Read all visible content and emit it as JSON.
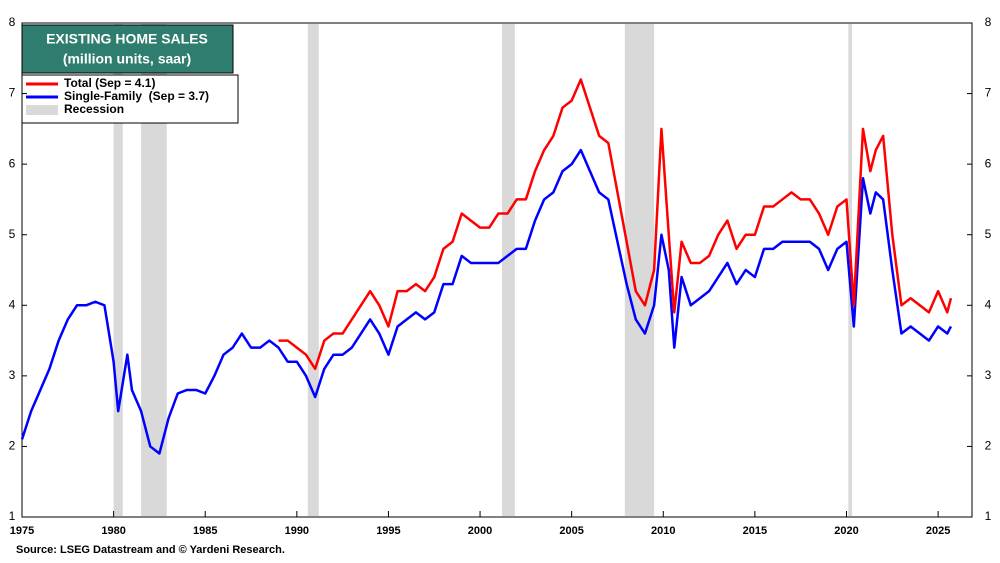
{
  "chart_data": {
    "type": "line",
    "title": "EXISTING HOME SALES",
    "subtitle": "(million units, saar)",
    "source": "Source: LSEG Datastream and © Yardeni Research.",
    "recession_label": "Recession",
    "recession_color": "#d9d9d9",
    "recessions": [
      [
        1980.0,
        1980.5
      ],
      [
        1981.5,
        1982.9
      ],
      [
        1990.6,
        1991.2
      ],
      [
        2001.2,
        2001.9
      ],
      [
        2007.9,
        2009.5
      ],
      [
        2020.1,
        2020.3
      ]
    ],
    "x": [
      1975,
      1975.5,
      1976,
      1976.5,
      1977,
      1977.5,
      1978,
      1978.5,
      1979,
      1979.5,
      1980,
      1980.25,
      1980.75,
      1981,
      1981.5,
      1982,
      1982.5,
      1983,
      1983.5,
      1984,
      1984.5,
      1985,
      1985.5,
      1986,
      1986.5,
      1987,
      1987.5,
      1988,
      1988.5,
      1989,
      1989.5,
      1990,
      1990.5,
      1991,
      1991.5,
      1992,
      1992.5,
      1993,
      1993.5,
      1994,
      1994.5,
      1995,
      1995.5,
      1996,
      1996.5,
      1997,
      1997.5,
      1998,
      1998.5,
      1999,
      1999.5,
      2000,
      2000.5,
      2001,
      2001.5,
      2002,
      2002.5,
      2003,
      2003.5,
      2004,
      2004.5,
      2005,
      2005.5,
      2006,
      2006.5,
      2007,
      2007.5,
      2008,
      2008.5,
      2009,
      2009.5,
      2009.9,
      2010.3,
      2010.6,
      2011,
      2011.5,
      2012,
      2012.5,
      2013,
      2013.5,
      2014,
      2014.5,
      2015,
      2015.5,
      2016,
      2016.5,
      2017,
      2017.5,
      2018,
      2018.5,
      2019,
      2019.5,
      2020,
      2020.4,
      2020.9,
      2021.3,
      2021.6,
      2022,
      2022.5,
      2023,
      2023.5,
      2024,
      2024.5,
      2025,
      2025.5,
      2025.7
    ],
    "series": [
      {
        "name": "Total (Sep = 4.1)",
        "color": "#ff0000",
        "values": [
          null,
          null,
          null,
          null,
          null,
          null,
          null,
          null,
          null,
          null,
          null,
          null,
          null,
          null,
          null,
          null,
          null,
          null,
          null,
          null,
          null,
          null,
          null,
          null,
          null,
          null,
          null,
          null,
          null,
          3.5,
          3.5,
          3.4,
          3.3,
          3.1,
          3.5,
          3.6,
          3.6,
          3.8,
          4.0,
          4.2,
          4.0,
          3.7,
          4.2,
          4.2,
          4.3,
          4.2,
          4.4,
          4.8,
          4.9,
          5.3,
          5.2,
          5.1,
          5.1,
          5.3,
          5.3,
          5.5,
          5.5,
          5.9,
          6.2,
          6.4,
          6.8,
          6.9,
          7.2,
          6.8,
          6.4,
          6.3,
          5.6,
          4.9,
          4.2,
          4.0,
          4.5,
          6.5,
          5.0,
          3.9,
          4.9,
          4.6,
          4.6,
          4.7,
          5.0,
          5.2,
          4.8,
          5.0,
          5.0,
          5.4,
          5.4,
          5.5,
          5.6,
          5.5,
          5.5,
          5.3,
          5.0,
          5.4,
          5.5,
          4.0,
          6.5,
          5.9,
          6.2,
          6.4,
          5.0,
          4.0,
          4.1,
          4.0,
          3.9,
          4.2,
          3.9,
          4.1
        ]
      },
      {
        "name": "Single-Family  (Sep = 3.7)",
        "color": "#0000ff",
        "values": [
          2.1,
          2.5,
          2.8,
          3.1,
          3.5,
          3.8,
          4.0,
          4.0,
          4.05,
          4.0,
          3.2,
          2.5,
          3.3,
          2.8,
          2.5,
          2.0,
          1.9,
          2.4,
          2.75,
          2.8,
          2.8,
          2.75,
          3.0,
          3.3,
          3.4,
          3.6,
          3.4,
          3.4,
          3.5,
          3.4,
          3.2,
          3.2,
          3.0,
          2.7,
          3.1,
          3.3,
          3.3,
          3.4,
          3.6,
          3.8,
          3.6,
          3.3,
          3.7,
          3.8,
          3.9,
          3.8,
          3.9,
          4.3,
          4.3,
          4.7,
          4.6,
          4.6,
          4.6,
          4.6,
          4.7,
          4.8,
          4.8,
          5.2,
          5.5,
          5.6,
          5.9,
          6.0,
          6.2,
          5.9,
          5.6,
          5.5,
          4.9,
          4.3,
          3.8,
          3.6,
          4.0,
          5.0,
          4.5,
          3.4,
          4.4,
          4.0,
          4.1,
          4.2,
          4.4,
          4.6,
          4.3,
          4.5,
          4.4,
          4.8,
          4.8,
          4.9,
          4.9,
          4.9,
          4.9,
          4.8,
          4.5,
          4.8,
          4.9,
          3.7,
          5.8,
          5.3,
          5.6,
          5.5,
          4.5,
          3.6,
          3.7,
          3.6,
          3.5,
          3.7,
          3.6,
          3.7
        ]
      }
    ],
    "xlim": [
      1975,
      2026.85
    ],
    "xticks": [
      1975,
      1980,
      1985,
      1990,
      1995,
      2000,
      2005,
      2010,
      2015,
      2020,
      2025
    ],
    "ylim": [
      1,
      8
    ],
    "yticks": [
      1,
      2,
      3,
      4,
      5,
      6,
      7,
      8
    ],
    "y2lim": [
      1,
      8
    ],
    "y2ticks": [
      1,
      2,
      3,
      4,
      5,
      6,
      7,
      8
    ],
    "title_color": "#2e7d6e",
    "grid": false
  }
}
